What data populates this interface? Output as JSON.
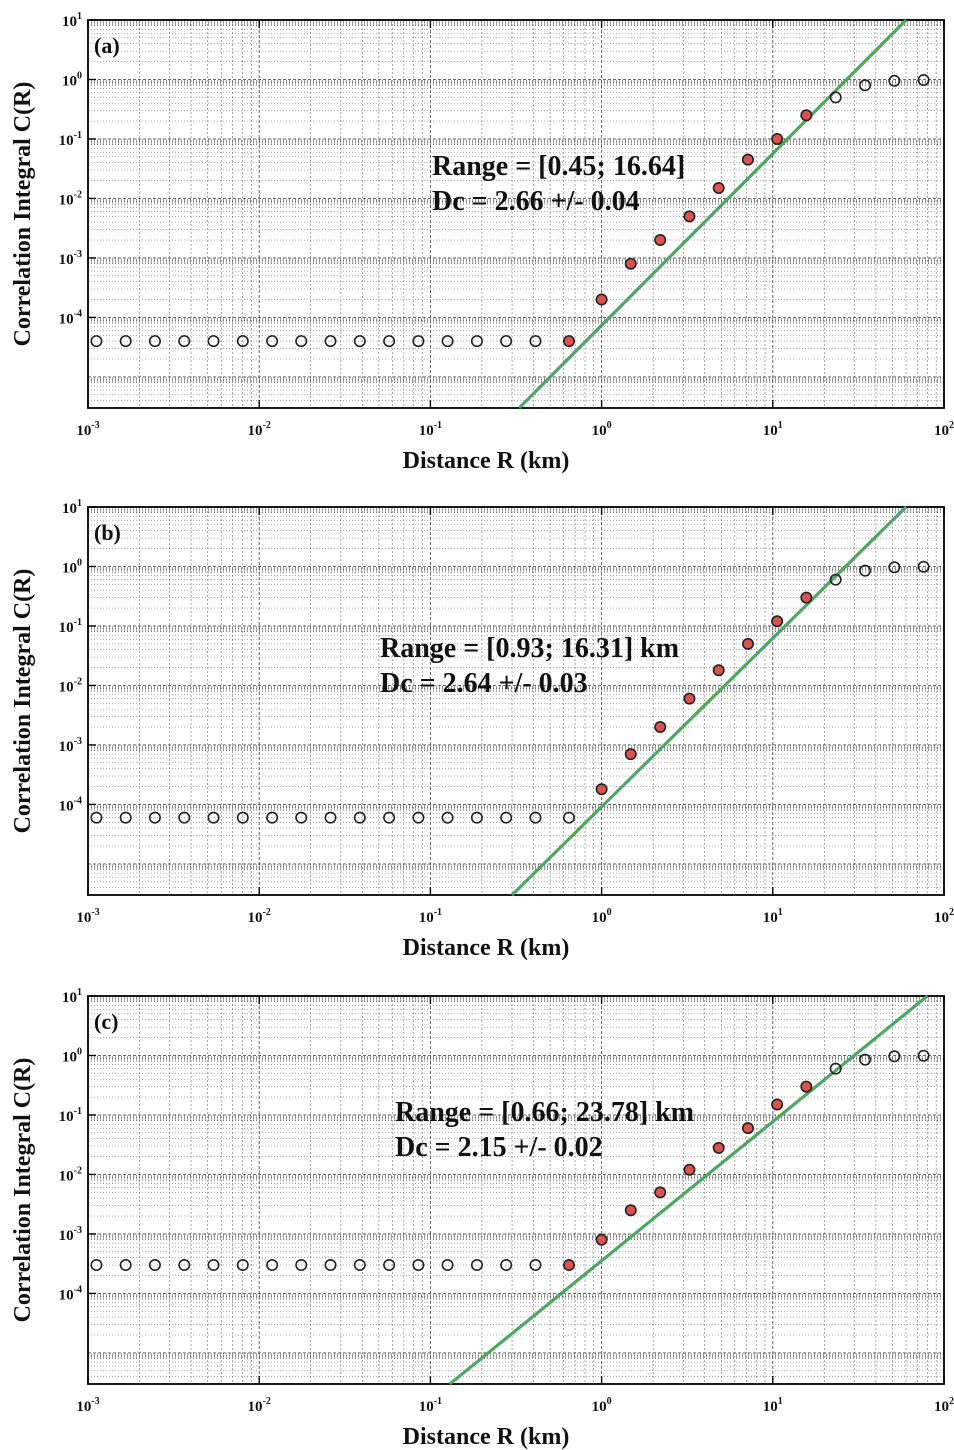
{
  "figure": {
    "xlabel": "Distance R (km)",
    "ylabel": "Correlation Integral C(R)",
    "x_scale": "log",
    "y_scale": "log",
    "xlim": [
      0.001,
      100
    ],
    "ylim": [
      3e-06,
      10
    ],
    "x_ticks": [
      {
        "base": "10",
        "exp": "-3"
      },
      {
        "base": "10",
        "exp": "-2"
      },
      {
        "base": "10",
        "exp": "-1"
      },
      {
        "base": "10",
        "exp": "0"
      },
      {
        "base": "10",
        "exp": "1"
      },
      {
        "base": "10",
        "exp": "2"
      }
    ],
    "y_ticks": [
      {
        "base": "10",
        "exp": "1"
      },
      {
        "base": "10",
        "exp": "0"
      },
      {
        "base": "10",
        "exp": "-1"
      },
      {
        "base": "10",
        "exp": "-2"
      },
      {
        "base": "10",
        "exp": "-3"
      },
      {
        "base": "10",
        "exp": "-4"
      }
    ],
    "grid": true,
    "colors": {
      "fit_line_blue": "#1f4e9c",
      "fit_line_green": "#4caf50",
      "fitted_point_fill": "#d9534f",
      "open_point_stroke": "#222222",
      "grid": "#555555"
    }
  },
  "chart_data": [
    {
      "type": "scatter",
      "panel": "(a)",
      "annotation": {
        "line1": "Range = [0.45; 16.64]",
        "line2": "Dc =  2.66  +/- 0.04"
      },
      "range_km": [
        0.45,
        16.64
      ],
      "dc": 2.66,
      "dc_err": 0.04,
      "x": [
        0.00112,
        0.00166,
        0.00246,
        0.00365,
        0.00541,
        0.00802,
        0.0119,
        0.0176,
        0.0261,
        0.0387,
        0.0574,
        0.0851,
        0.126,
        0.187,
        0.277,
        0.411,
        0.645,
        1.0,
        1.48,
        2.2,
        3.26,
        4.83,
        7.16,
        10.6,
        15.7,
        23.3,
        34.6,
        51.3,
        76.0
      ],
      "y": [
        4e-05,
        4e-05,
        4e-05,
        4e-05,
        4e-05,
        4e-05,
        4e-05,
        4e-05,
        4e-05,
        4e-05,
        4e-05,
        4e-05,
        4e-05,
        4e-05,
        4e-05,
        4e-05,
        4e-05,
        0.0002,
        0.0008,
        0.002,
        0.005,
        0.015,
        0.045,
        0.1,
        0.25,
        0.5,
        0.8,
        0.95,
        0.98
      ],
      "fitted": [
        false,
        false,
        false,
        false,
        false,
        false,
        false,
        false,
        false,
        false,
        false,
        false,
        false,
        false,
        false,
        false,
        true,
        true,
        true,
        true,
        true,
        true,
        true,
        true,
        true,
        false,
        false,
        false,
        false
      ],
      "fit_lines": [
        {
          "color": "blue",
          "x": [
            0.33,
            60
          ],
          "y": [
            3e-06,
            10
          ]
        },
        {
          "color": "green",
          "x": [
            0.33,
            60
          ],
          "y": [
            3e-06,
            10
          ]
        }
      ]
    },
    {
      "type": "scatter",
      "panel": "(b)",
      "annotation": {
        "line1": "Range = [0.93; 16.31] km",
        "line2": "Dc =  2.64  +/- 0.03"
      },
      "range_km": [
        0.93,
        16.31
      ],
      "dc": 2.64,
      "dc_err": 0.03,
      "x": [
        0.00112,
        0.00166,
        0.00246,
        0.00365,
        0.00541,
        0.00802,
        0.0119,
        0.0176,
        0.0261,
        0.0387,
        0.0574,
        0.0851,
        0.126,
        0.187,
        0.277,
        0.411,
        0.645,
        1.0,
        1.48,
        2.2,
        3.26,
        4.83,
        7.16,
        10.6,
        15.7,
        23.3,
        34.6,
        51.3,
        76.0
      ],
      "y": [
        6e-05,
        6e-05,
        6e-05,
        6e-05,
        6e-05,
        6e-05,
        6e-05,
        6e-05,
        6e-05,
        6e-05,
        6e-05,
        6e-05,
        6e-05,
        6e-05,
        6e-05,
        6e-05,
        6e-05,
        0.00018,
        0.0007,
        0.002,
        0.006,
        0.018,
        0.05,
        0.12,
        0.3,
        0.6,
        0.85,
        0.97,
        0.99
      ],
      "fitted": [
        false,
        false,
        false,
        false,
        false,
        false,
        false,
        false,
        false,
        false,
        false,
        false,
        false,
        false,
        false,
        false,
        false,
        true,
        true,
        true,
        true,
        true,
        true,
        true,
        true,
        false,
        false,
        false,
        false
      ],
      "fit_lines": [
        {
          "color": "blue",
          "x": [
            0.3,
            60
          ],
          "y": [
            3e-06,
            10
          ]
        },
        {
          "color": "green",
          "x": [
            0.3,
            60
          ],
          "y": [
            3e-06,
            10
          ]
        }
      ]
    },
    {
      "type": "scatter",
      "panel": "(c)",
      "annotation": {
        "line1": "Range = [0.66; 23.78] km",
        "line2": "Dc =  2.15  +/- 0.02"
      },
      "range_km": [
        0.66,
        23.78
      ],
      "dc": 2.15,
      "dc_err": 0.02,
      "x": [
        0.00112,
        0.00166,
        0.00246,
        0.00365,
        0.00541,
        0.00802,
        0.0119,
        0.0176,
        0.0261,
        0.0387,
        0.0574,
        0.0851,
        0.126,
        0.187,
        0.277,
        0.411,
        0.645,
        1.0,
        1.48,
        2.2,
        3.26,
        4.83,
        7.16,
        10.6,
        15.7,
        23.3,
        34.6,
        51.3,
        76.0
      ],
      "y": [
        0.0003,
        0.0003,
        0.0003,
        0.0003,
        0.0003,
        0.0003,
        0.0003,
        0.0003,
        0.0003,
        0.0003,
        0.0003,
        0.0003,
        0.0003,
        0.0003,
        0.0003,
        0.0003,
        0.0003,
        0.0008,
        0.0025,
        0.005,
        0.012,
        0.028,
        0.06,
        0.15,
        0.3,
        0.6,
        0.85,
        0.97,
        0.99
      ],
      "fitted": [
        false,
        false,
        false,
        false,
        false,
        false,
        false,
        false,
        false,
        false,
        false,
        false,
        false,
        false,
        false,
        false,
        true,
        true,
        true,
        true,
        true,
        true,
        true,
        true,
        true,
        false,
        false,
        false,
        false
      ],
      "fit_lines": [
        {
          "color": "blue",
          "x": [
            0.13,
            80
          ],
          "y": [
            3e-06,
            10
          ]
        },
        {
          "color": "green",
          "x": [
            0.13,
            80
          ],
          "y": [
            3e-06,
            10
          ]
        }
      ]
    }
  ]
}
